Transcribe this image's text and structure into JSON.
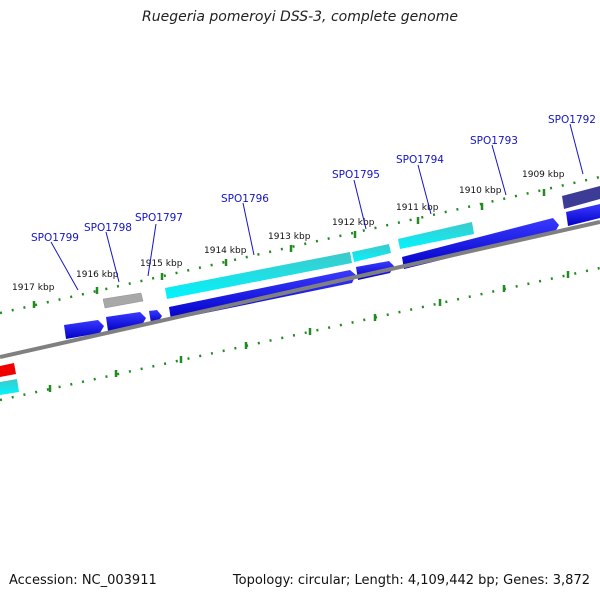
{
  "title": "Ruegeria pomeroyi DSS-3, complete genome",
  "footer": {
    "accession": "Accession: NC_003911",
    "topology": "Topology: circular; Length: 4,109,442 bp; Genes: 3,872"
  },
  "scale_labels": [
    "1917 kbp",
    "1916 kbp",
    "1915 kbp",
    "1914 kbp",
    "1913 kbp",
    "1912 kbp",
    "1911 kbp",
    "1910 kbp",
    "1909 kbp"
  ],
  "gene_labels": [
    "SPO1799",
    "SPO1798",
    "SPO1797",
    "SPO1796",
    "SPO1795",
    "SPO1794",
    "SPO1793",
    "SPO1792"
  ],
  "colors": {
    "cds_blue": "#0000e6",
    "cds_cyan": "#00e6f0",
    "cds_gray": "#a8a8a8",
    "cds_navy": "#3c3c96",
    "cds_red": "#f00000",
    "backbone": "#808080",
    "tick_green": "#228b22",
    "label_blue": "#1414c8"
  }
}
